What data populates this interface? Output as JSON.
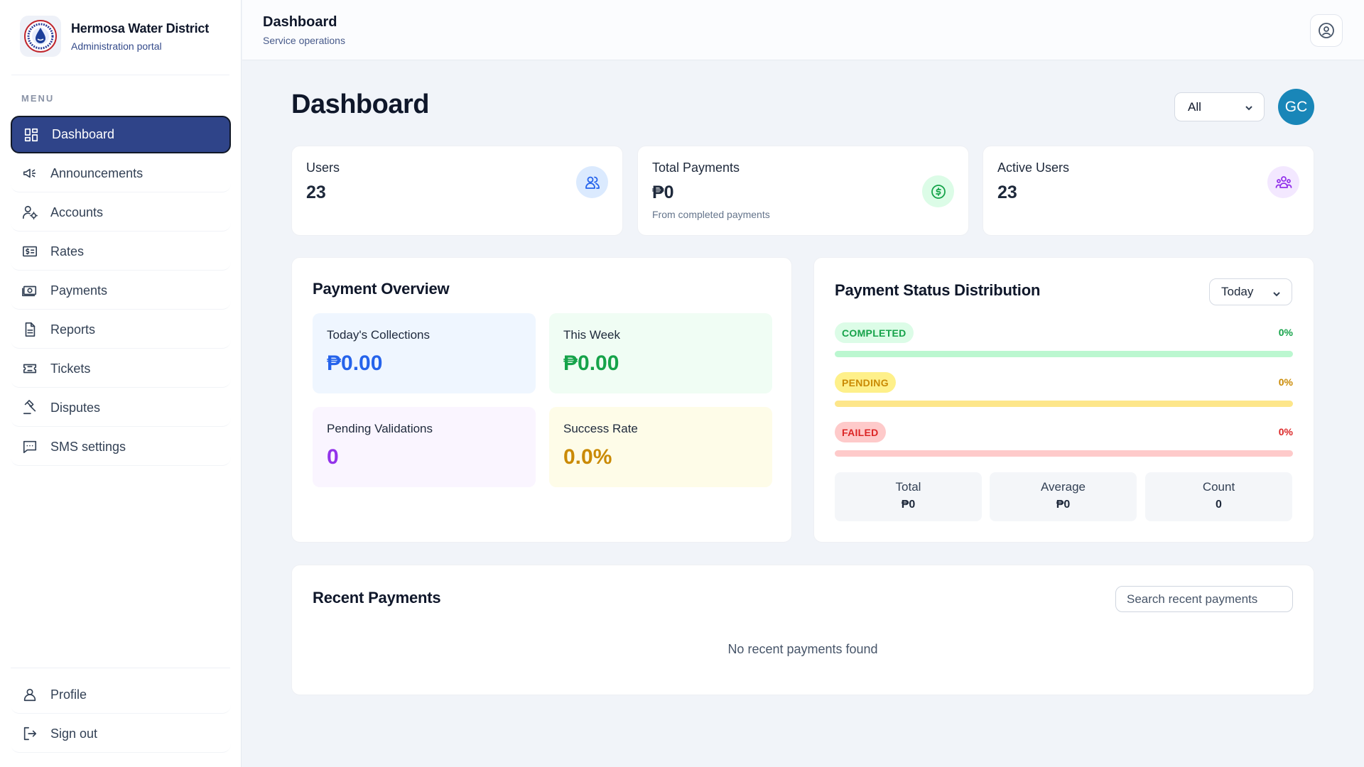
{
  "brand": {
    "name": "Hermosa Water District",
    "subtitle": "Administration portal"
  },
  "sidebar": {
    "menu_label": "MENU",
    "items": [
      {
        "label": "Dashboard",
        "icon": "dashboard-icon",
        "active": true
      },
      {
        "label": "Announcements",
        "icon": "megaphone-icon"
      },
      {
        "label": "Accounts",
        "icon": "user-gear-icon"
      },
      {
        "label": "Rates",
        "icon": "rates-icon"
      },
      {
        "label": "Payments",
        "icon": "cash-icon"
      },
      {
        "label": "Reports",
        "icon": "document-icon"
      },
      {
        "label": "Tickets",
        "icon": "ticket-icon"
      },
      {
        "label": "Disputes",
        "icon": "gavel-icon"
      },
      {
        "label": "SMS settings",
        "icon": "chat-icon"
      }
    ],
    "bottom": [
      {
        "label": "Profile",
        "icon": "person-icon"
      },
      {
        "label": "Sign out",
        "icon": "sign-out-icon"
      }
    ]
  },
  "topbar": {
    "title": "Dashboard",
    "subtitle": "Service operations"
  },
  "main": {
    "title": "Dashboard",
    "filter_value": "All",
    "avatar_initials": "GC"
  },
  "stats": [
    {
      "label": "Users",
      "value": "23",
      "note": "",
      "icon": "users-icon",
      "color": "#2563eb",
      "bg": "#dbeafe"
    },
    {
      "label": "Total Payments",
      "value": "₱0",
      "note": "From completed payments",
      "icon": "dollar-circle-icon",
      "color": "#16a34a",
      "bg": "#dcfce7"
    },
    {
      "label": "Active Users",
      "value": "23",
      "note": "",
      "icon": "group-icon",
      "color": "#9333ea",
      "bg": "#f3e8ff"
    }
  ],
  "overview": {
    "title": "Payment Overview",
    "tiles": [
      {
        "label": "Today's Collections",
        "value": "₱0.00",
        "color": "#2563eb",
        "bg": "#eff6ff"
      },
      {
        "label": "This Week",
        "value": "₱0.00",
        "color": "#16a34a",
        "bg": "#f0fdf4"
      },
      {
        "label": "Pending Validations",
        "value": "0",
        "color": "#9333ea",
        "bg": "#faf5ff"
      },
      {
        "label": "Success Rate",
        "value": "0.0%",
        "color": "#ca8a04",
        "bg": "#fefce8"
      }
    ]
  },
  "distribution": {
    "title": "Payment Status Distribution",
    "period": "Today",
    "statuses": [
      {
        "label": "COMPLETED",
        "pct": "0%",
        "value": 0,
        "color": "#16a34a",
        "badge_bg": "#dcfce7",
        "bar": "#bbf7d0"
      },
      {
        "label": "PENDING",
        "pct": "0%",
        "value": 0,
        "color": "#ca8a04",
        "badge_bg": "#fef08a",
        "bar": "#fde68a"
      },
      {
        "label": "FAILED",
        "pct": "0%",
        "value": 0,
        "color": "#dc2626",
        "badge_bg": "#fecaca",
        "bar": "#fecaca"
      }
    ],
    "summary": [
      {
        "label": "Total",
        "value": "₱0"
      },
      {
        "label": "Average",
        "value": "₱0"
      },
      {
        "label": "Count",
        "value": "0"
      }
    ]
  },
  "recent": {
    "title": "Recent Payments",
    "search_placeholder": "Search recent payments",
    "empty_text": "No recent payments found"
  }
}
